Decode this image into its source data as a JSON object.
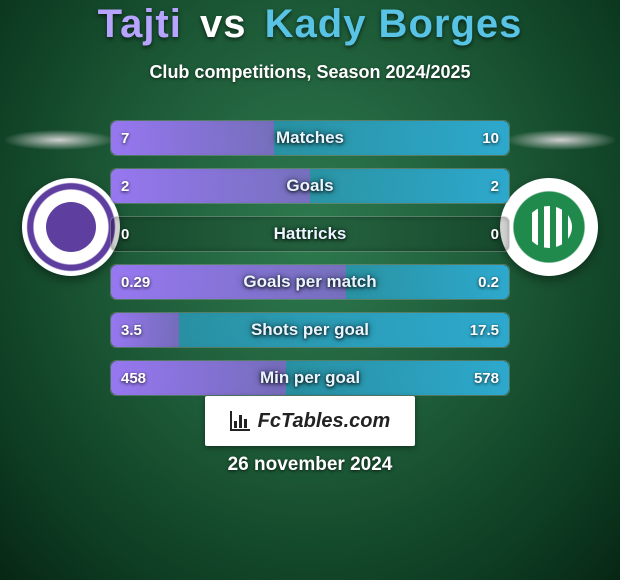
{
  "title": {
    "player1": "Tajti",
    "vs": "vs",
    "player2": "Kady Borges"
  },
  "subtitle": "Club competitions, Season 2024/2025",
  "brand": "FcTables.com",
  "date": "26 november 2024",
  "colors": {
    "left_fill": "#a07bff",
    "right_fill": "#2fb0d9",
    "title_left": "#b6a4ff",
    "title_right": "#59c3e6"
  },
  "stats": [
    {
      "label": "Matches",
      "left_text": "7",
      "right_text": "10",
      "left_pct": 41,
      "right_pct": 59
    },
    {
      "label": "Goals",
      "left_text": "2",
      "right_text": "2",
      "left_pct": 50,
      "right_pct": 50
    },
    {
      "label": "Hattricks",
      "left_text": "0",
      "right_text": "0",
      "left_pct": 0,
      "right_pct": 0
    },
    {
      "label": "Goals per match",
      "left_text": "0.29",
      "right_text": "0.2",
      "left_pct": 59,
      "right_pct": 41
    },
    {
      "label": "Shots per goal",
      "left_text": "3.5",
      "right_text": "17.5",
      "left_pct": 17,
      "right_pct": 83
    },
    {
      "label": "Min per goal",
      "left_text": "458",
      "right_text": "578",
      "left_pct": 44,
      "right_pct": 56
    }
  ]
}
